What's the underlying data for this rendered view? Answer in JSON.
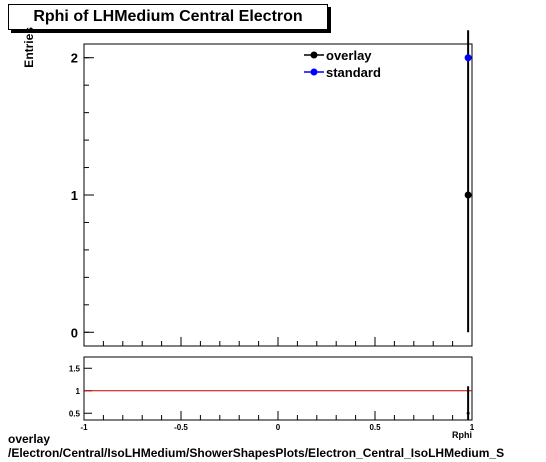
{
  "chart_data": {
    "type": "scatter",
    "title": "Rphi of LHMedium Central  Electron",
    "ylabel": "Entries",
    "xlabel": "Rphi",
    "xlim": [
      -1,
      1
    ],
    "ylim": [
      -0.1,
      2.1
    ],
    "main_y_ticks": [
      "0",
      "1",
      "2"
    ],
    "x_ticks": [
      "-1",
      "-0.5",
      "0",
      "0.5",
      "1"
    ],
    "ratio_y_ticks": [
      "0.5",
      "1",
      "1.5"
    ],
    "ratio_ylim": [
      0.35,
      1.75
    ],
    "legend_position": "top-right",
    "series": [
      {
        "name": "overlay",
        "color": "#000000",
        "points": [
          {
            "x": 0.98,
            "y": 1,
            "yerr_low": 1,
            "yerr_high": 1.2
          }
        ]
      },
      {
        "name": "standard",
        "color": "#0000ff",
        "points": [
          {
            "x": 0.98,
            "y": 2,
            "yerr_low": 0,
            "yerr_high": 0
          }
        ]
      }
    ],
    "ratio": {
      "reference_line": 1,
      "line_color": "#cc0000",
      "points": [
        {
          "x": 0.98,
          "y": 0.5,
          "yerr_low": 0.15,
          "yerr_high": 0.6
        }
      ]
    }
  },
  "footer": {
    "line1": "overlay",
    "line2": "/Electron/Central/IsoLHMedium/ShowerShapesPlots/Electron_Central_IsoLHMedium_S"
  }
}
